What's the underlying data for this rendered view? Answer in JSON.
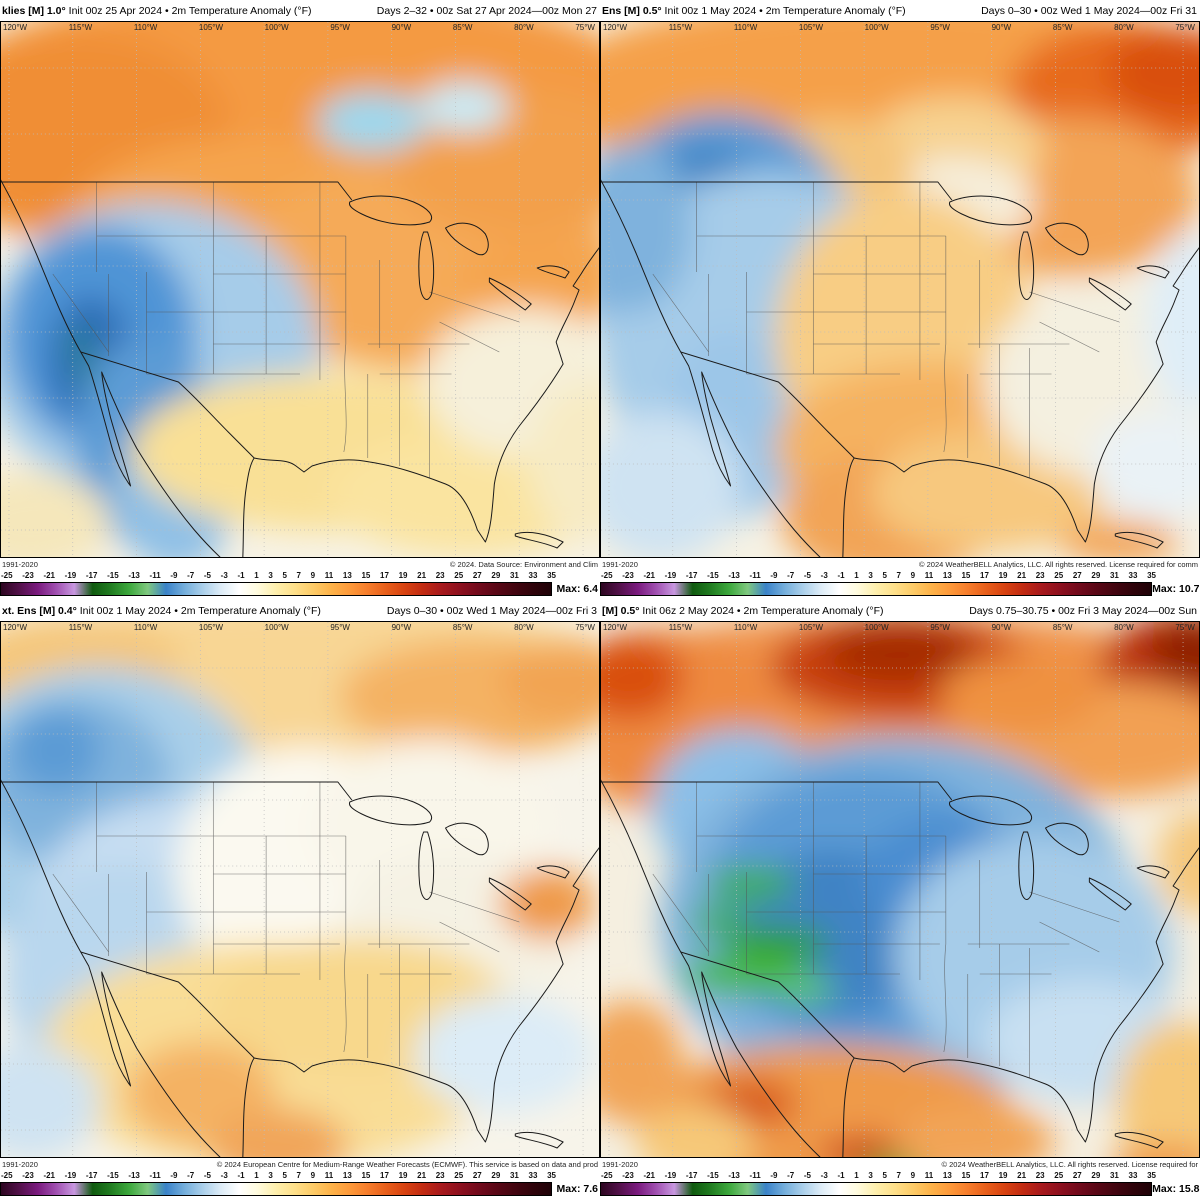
{
  "labels": {
    "max_label": "Max:"
  },
  "lon_labels": [
    "120°W",
    "115°W",
    "110°W",
    "105°W",
    "100°W",
    "95°W",
    "90°W",
    "85°W",
    "80°W",
    "75°W"
  ],
  "colorbar": {
    "ticks": [
      "-25",
      "-23",
      "-21",
      "-19",
      "-17",
      "-15",
      "-13",
      "-11",
      "-9",
      "-7",
      "-5",
      "-3",
      "-1",
      "1",
      "3",
      "5",
      "7",
      "9",
      "11",
      "13",
      "15",
      "17",
      "19",
      "21",
      "23",
      "25",
      "27",
      "29",
      "31",
      "33",
      "35"
    ],
    "colors": [
      "#2d0620",
      "#53114a",
      "#7a1a7e",
      "#a04fb0",
      "#c897e0",
      "#0f5a0f",
      "#217d21",
      "#3da83d",
      "#7fc87f",
      "#3a82c8",
      "#74aedb",
      "#aacfea",
      "#ddecf7",
      "#ffffff",
      "#fffbdd",
      "#feefad",
      "#fee08b",
      "#fdcc69",
      "#fdb34a",
      "#fd9a3b",
      "#f67d2c",
      "#e85f1b",
      "#d84311",
      "#c22b12",
      "#a81a1d",
      "#8e101f",
      "#730a1c",
      "#5a0716",
      "#440510",
      "#30030b",
      "#1f0207"
    ]
  },
  "panels": [
    {
      "id": "top-left",
      "model": "klies [M] 1.0°",
      "title_rest": " Init 00z 25 Apr 2024 • 2m Temperature Anomaly (°F)",
      "days": "Days 2–32 • 00z Sat 27 Apr 2024—00z Mon 27",
      "climo": "1991-2020",
      "copyright": "© 2024. Data Source: Environment and Clim",
      "max": "6.4"
    },
    {
      "id": "top-right",
      "model": "Ens [M] 0.5°",
      "title_rest": " Init 00z 1 May 2024 • 2m Temperature Anomaly (°F)",
      "days": "Days 0–30 • 00z Wed 1 May 2024—00z Fri 31",
      "climo": "1991-2020",
      "copyright": "© 2024 WeatherBELL Analytics, LLC. All rights reserved. License required for comm",
      "max": "10.7"
    },
    {
      "id": "bottom-left",
      "model": "xt. Ens [M] 0.4°",
      "title_rest": " Init 00z 1 May 2024 • 2m Temperature Anomaly (°F)",
      "days": "Days 0–30 • 00z Wed 1 May 2024—00z Fri 3",
      "climo": "1991-2020",
      "copyright": "© 2024 European Centre for Medium-Range Weather Forecasts (ECMWF). This service is based on data and prod",
      "max": "7.6"
    },
    {
      "id": "bottom-right",
      "model": "[M] 0.5°",
      "title_rest": " Init 06z 2 May 2024 • 2m Temperature Anomaly (°F)",
      "days": "Days 0.75–30.75 • 00z Fri 3 May 2024—00z Sun",
      "climo": "1991-2020",
      "copyright": "© 2024 WeatherBELL Analytics, LLC. All rights reserved. License required for",
      "max": "15.8"
    }
  ]
}
